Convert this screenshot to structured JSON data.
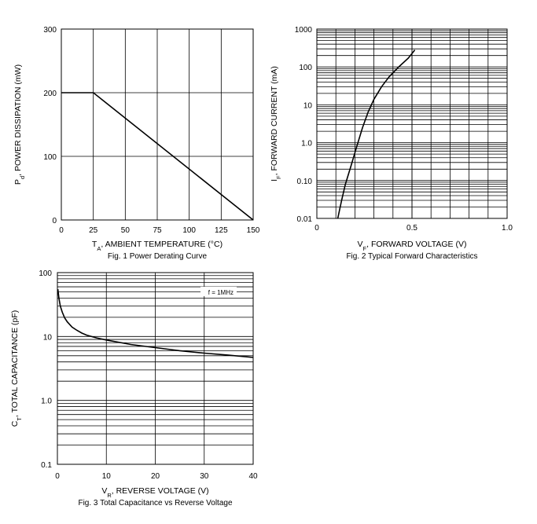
{
  "chart_data": [
    {
      "type": "line",
      "caption": "Fig. 1  Power Derating Curve",
      "xlabel": {
        "main": "T",
        "sub": "A",
        "rest": ", AMBIENT TEMPERATURE (°C)"
      },
      "ylabel": {
        "main": "P",
        "sub": "d",
        "rest": ", POWER DISSIPATION (mW)"
      },
      "xscale": "linear",
      "yscale": "linear",
      "xlim": [
        0,
        150
      ],
      "ylim": [
        0,
        300
      ],
      "xticks": [
        0,
        25,
        50,
        75,
        100,
        125,
        150
      ],
      "xtick_labels": [
        "0",
        "25",
        "50",
        "75",
        "100",
        "125",
        "150"
      ],
      "yticks": [
        0,
        100,
        200,
        300
      ],
      "ytick_labels": [
        "0",
        "100",
        "200",
        "300"
      ],
      "grid": true,
      "series": [
        {
          "name": "Pd",
          "x": [
            0,
            25,
            150
          ],
          "y": [
            200,
            200,
            0
          ]
        }
      ]
    },
    {
      "type": "line",
      "caption": "Fig. 2  Typical Forward Characteristics",
      "xlabel": {
        "main": "V",
        "sub": "F",
        "rest": ", FORWARD VOLTAGE (V)"
      },
      "ylabel": {
        "main": "I",
        "sub": "F",
        "rest": ", FORWARD CURRENT (mA)"
      },
      "xscale": "linear",
      "yscale": "log",
      "xlim": [
        0,
        1.0
      ],
      "ylim": [
        0.01,
        1000
      ],
      "xticks": [
        0,
        0.5,
        1.0
      ],
      "xtick_labels": [
        "0",
        "0.5",
        "1.0"
      ],
      "yticks": [
        0.01,
        0.1,
        1,
        10,
        100,
        1000
      ],
      "ytick_labels": [
        "0.01",
        "0.10",
        "1.0",
        "10",
        "100",
        "1000"
      ],
      "grid": true,
      "series": [
        {
          "name": "IF",
          "x": [
            0.11,
            0.13,
            0.15,
            0.18,
            0.21,
            0.24,
            0.27,
            0.3,
            0.34,
            0.38,
            0.43,
            0.48,
            0.515
          ],
          "y": [
            0.01,
            0.03,
            0.08,
            0.25,
            0.8,
            2.5,
            6.5,
            14,
            30,
            55,
            100,
            170,
            280
          ]
        }
      ]
    },
    {
      "type": "line",
      "caption": "Fig. 3  Total Capacitance vs Reverse Voltage",
      "xlabel": {
        "main": "V",
        "sub": "R",
        "rest": ", REVERSE VOLTAGE (V)"
      },
      "ylabel": {
        "main": "C",
        "sub": "T",
        "rest": ", TOTAL CAPACITANCE (pF)"
      },
      "xscale": "linear",
      "yscale": "log",
      "xlim": [
        0,
        40
      ],
      "ylim": [
        0.1,
        100
      ],
      "xticks": [
        0,
        10,
        20,
        30,
        40
      ],
      "xtick_labels": [
        "0",
        "10",
        "20",
        "30",
        "40"
      ],
      "yticks": [
        0.1,
        1,
        10,
        100
      ],
      "ytick_labels": [
        "0.1",
        "1.0",
        "10",
        "100"
      ],
      "grid": true,
      "annotation": "f = 1MHz",
      "series": [
        {
          "name": "CT",
          "x": [
            0.1,
            0.3,
            0.6,
            1,
            1.5,
            2,
            3,
            4,
            5,
            6,
            8,
            10,
            15,
            20,
            25,
            30,
            35,
            40
          ],
          "y": [
            55,
            40,
            30,
            24,
            19.5,
            17,
            14,
            12.5,
            11.3,
            10.5,
            9.5,
            8.8,
            7.5,
            6.7,
            6.0,
            5.5,
            5.1,
            4.7
          ]
        }
      ]
    }
  ]
}
